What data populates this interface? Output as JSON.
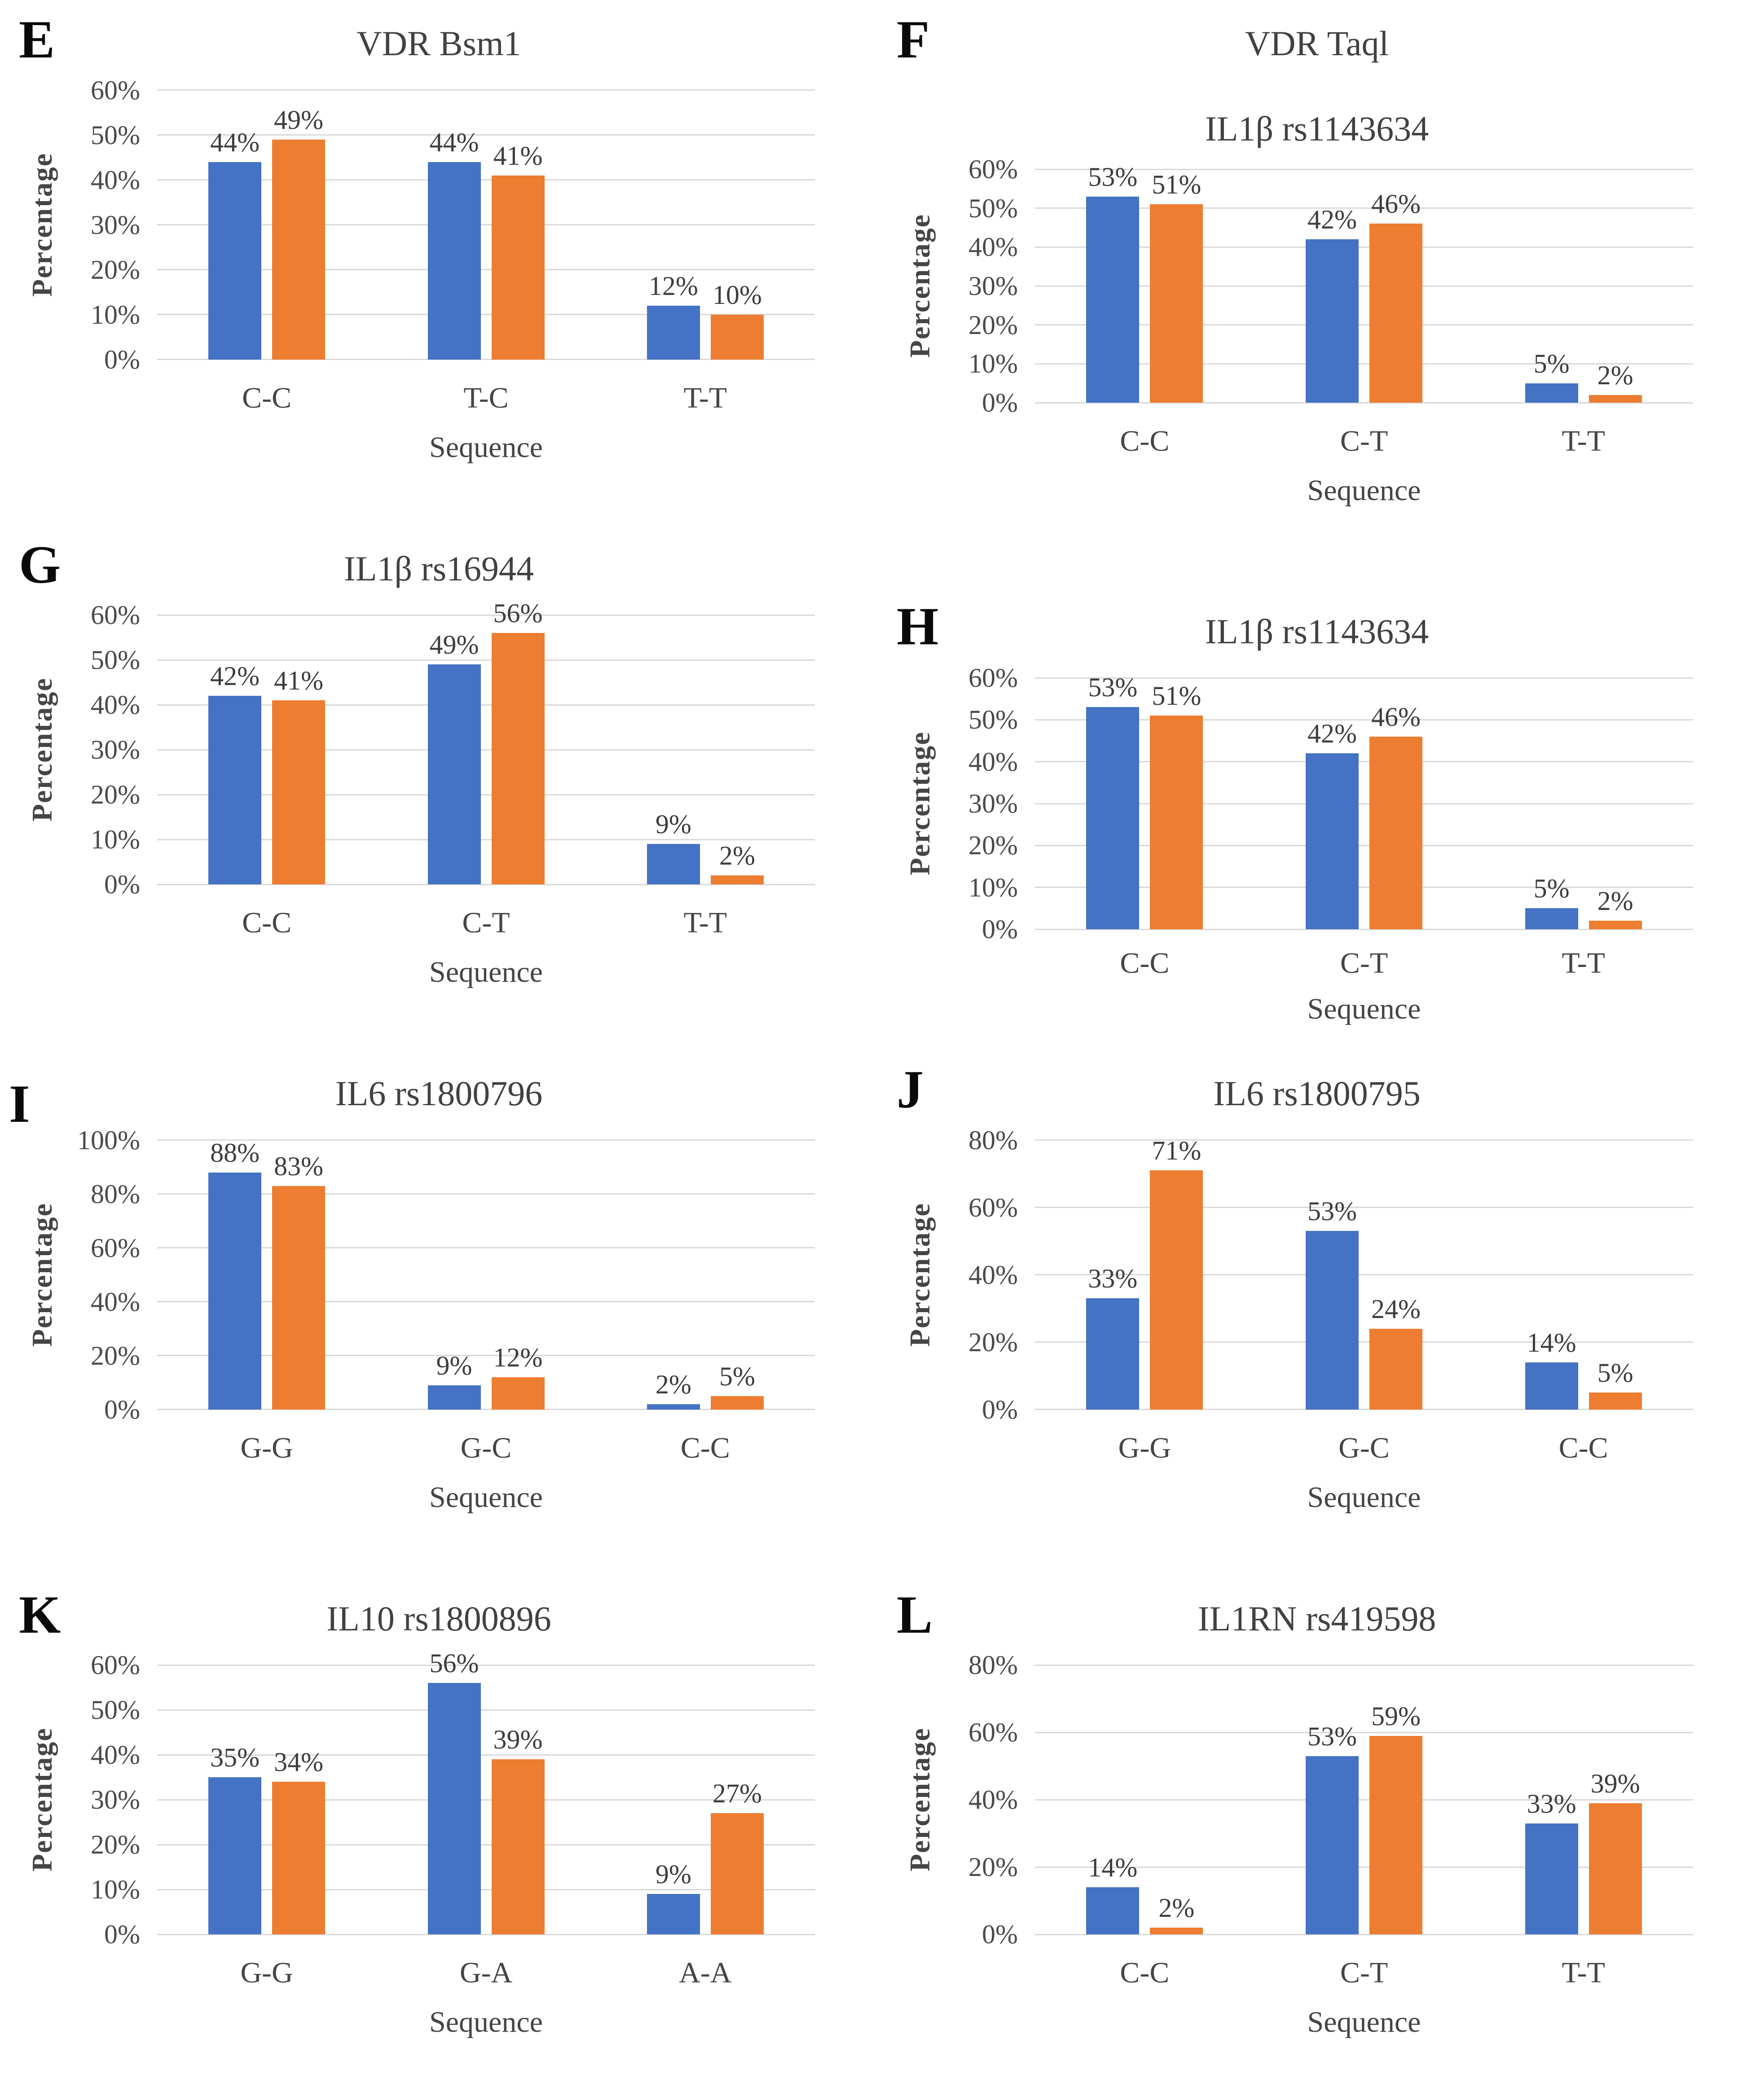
{
  "colors": {
    "series_blue": "#4472C4",
    "series_orange": "#ED7D31",
    "gridline": "#D9D9D9",
    "text": "#454545"
  },
  "chart_data": [
    {
      "panel_label": "E",
      "type": "bar",
      "title": "VDR Bsm1",
      "subtitle": "",
      "xlabel": "Sequence",
      "ylabel": "Percentage",
      "ylim": [
        0,
        60
      ],
      "ytick_step": 10,
      "ytick_suffix": "%",
      "data_label_suffix": "%",
      "grid": true,
      "legend": "none",
      "categories": [
        "C-C",
        "T-C",
        "T-T"
      ],
      "series": [
        {
          "color_name": "blue",
          "color": "#4472C4",
          "values": [
            44,
            44,
            12
          ]
        },
        {
          "color_name": "orange",
          "color": "#ED7D31",
          "values": [
            49,
            41,
            10
          ]
        }
      ]
    },
    {
      "panel_label": "F",
      "type": "bar",
      "title": "VDR Taql",
      "subtitle": "IL1β rs1143634",
      "xlabel": "Sequence",
      "ylabel": "Percentage",
      "ylim": [
        0,
        60
      ],
      "ytick_step": 10,
      "ytick_suffix": "%",
      "data_label_suffix": "%",
      "grid": true,
      "legend": "none",
      "categories": [
        "C-C",
        "C-T",
        "T-T"
      ],
      "series": [
        {
          "color_name": "blue",
          "color": "#4472C4",
          "values": [
            53,
            42,
            5
          ]
        },
        {
          "color_name": "orange",
          "color": "#ED7D31",
          "values": [
            51,
            46,
            2
          ]
        }
      ]
    },
    {
      "panel_label": "G",
      "type": "bar",
      "title": "IL1β rs16944",
      "subtitle": "",
      "xlabel": "Sequence",
      "ylabel": "Percentage",
      "ylim": [
        0,
        60
      ],
      "ytick_step": 10,
      "ytick_suffix": "%",
      "data_label_suffix": "%",
      "grid": true,
      "legend": "none",
      "categories": [
        "C-C",
        "C-T",
        "T-T"
      ],
      "series": [
        {
          "color_name": "blue",
          "color": "#4472C4",
          "values": [
            42,
            49,
            9
          ]
        },
        {
          "color_name": "orange",
          "color": "#ED7D31",
          "values": [
            41,
            56,
            2
          ]
        }
      ]
    },
    {
      "panel_label": "H",
      "type": "bar",
      "title": "IL1β rs1143634",
      "subtitle": "",
      "xlabel": "Sequence",
      "ylabel": "Percentage",
      "ylim": [
        0,
        60
      ],
      "ytick_step": 10,
      "ytick_suffix": "%",
      "data_label_suffix": "%",
      "grid": true,
      "legend": "none",
      "categories": [
        "C-C",
        "C-T",
        "T-T"
      ],
      "series": [
        {
          "color_name": "blue",
          "color": "#4472C4",
          "values": [
            53,
            42,
            5
          ]
        },
        {
          "color_name": "orange",
          "color": "#ED7D31",
          "values": [
            51,
            46,
            2
          ]
        }
      ]
    },
    {
      "panel_label": "I",
      "type": "bar",
      "title": "IL6 rs1800796",
      "subtitle": "",
      "xlabel": "Sequence",
      "ylabel": "Percentage",
      "ylim": [
        0,
        100
      ],
      "ytick_step": 20,
      "ytick_suffix": "%",
      "data_label_suffix": "%",
      "grid": true,
      "legend": "none",
      "categories": [
        "G-G",
        "G-C",
        "C-C"
      ],
      "series": [
        {
          "color_name": "blue",
          "color": "#4472C4",
          "values": [
            88,
            9,
            2
          ]
        },
        {
          "color_name": "orange",
          "color": "#ED7D31",
          "values": [
            83,
            12,
            5
          ]
        }
      ]
    },
    {
      "panel_label": "J",
      "type": "bar",
      "title": "IL6 rs1800795",
      "subtitle": "",
      "xlabel": "Sequence",
      "ylabel": "Percentage",
      "ylim": [
        0,
        80
      ],
      "ytick_step": 20,
      "ytick_suffix": "%",
      "data_label_suffix": "%",
      "grid": true,
      "legend": "none",
      "categories": [
        "G-G",
        "G-C",
        "C-C"
      ],
      "series": [
        {
          "color_name": "blue",
          "color": "#4472C4",
          "values": [
            33,
            53,
            14
          ]
        },
        {
          "color_name": "orange",
          "color": "#ED7D31",
          "values": [
            71,
            24,
            5
          ]
        }
      ]
    },
    {
      "panel_label": "K",
      "type": "bar",
      "title": "IL10 rs1800896",
      "subtitle": "",
      "xlabel": "Sequence",
      "ylabel": "Percentage",
      "ylim": [
        0,
        60
      ],
      "ytick_step": 10,
      "ytick_suffix": "%",
      "data_label_suffix": "%",
      "grid": true,
      "legend": "none",
      "categories": [
        "G-G",
        "G-A",
        "A-A"
      ],
      "series": [
        {
          "color_name": "blue",
          "color": "#4472C4",
          "values": [
            35,
            56,
            9
          ]
        },
        {
          "color_name": "orange",
          "color": "#ED7D31",
          "values": [
            34,
            39,
            27
          ]
        }
      ]
    },
    {
      "panel_label": "L",
      "type": "bar",
      "title": "IL1RN rs419598",
      "subtitle": "",
      "xlabel": "Sequence",
      "ylabel": "Percentage",
      "ylim": [
        0,
        80
      ],
      "ytick_step": 20,
      "ytick_suffix": "%",
      "data_label_suffix": "%",
      "grid": true,
      "legend": "none",
      "categories": [
        "C-C",
        "C-T",
        "T-T"
      ],
      "series": [
        {
          "color_name": "blue",
          "color": "#4472C4",
          "values": [
            14,
            53,
            33
          ]
        },
        {
          "color_name": "orange",
          "color": "#ED7D31",
          "values": [
            2,
            59,
            39
          ]
        }
      ]
    }
  ]
}
